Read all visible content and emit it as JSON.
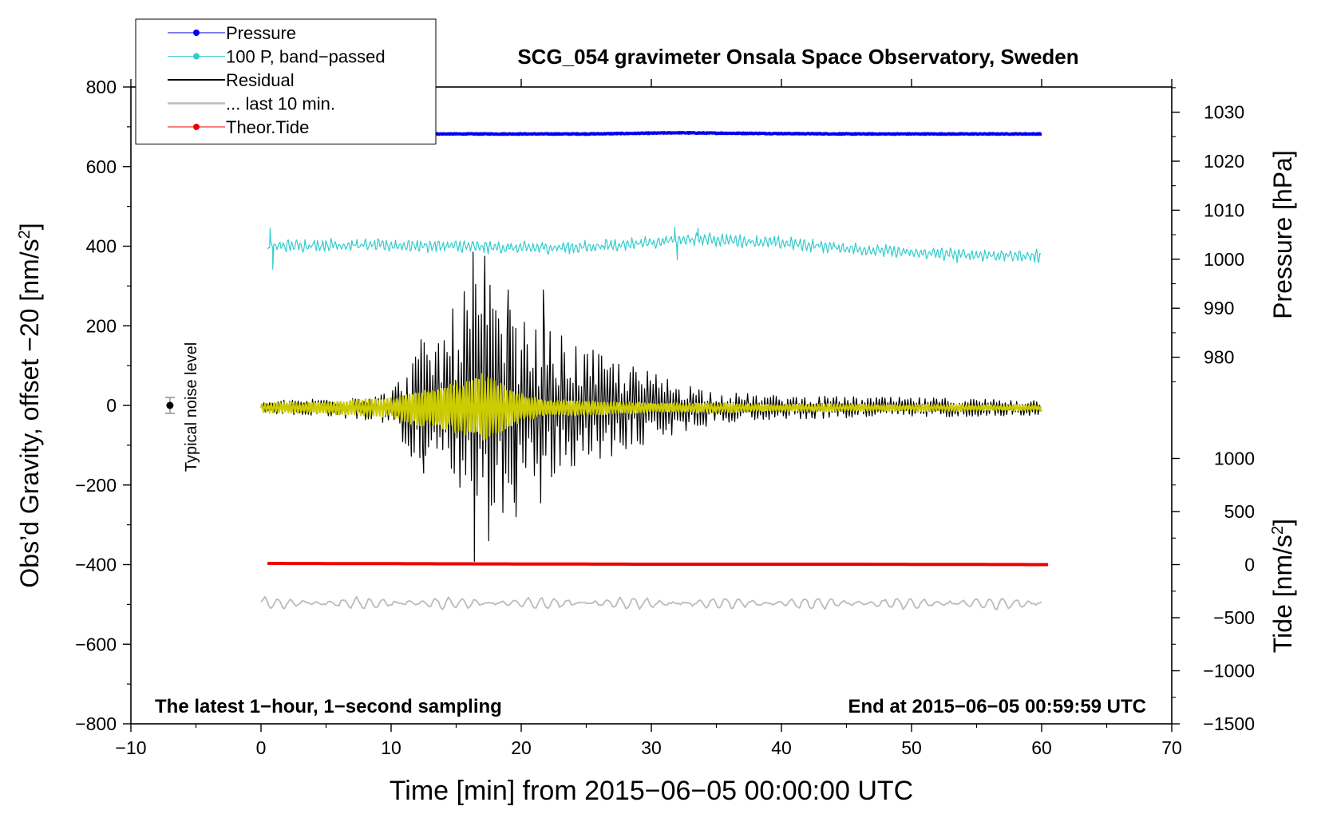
{
  "chart_data": {
    "type": "line",
    "title": "SCG_054 gravimeter Onsala Space Observatory, Sweden",
    "xlabel": "Time [min] from 2015−06−05 00:00:00 UTC",
    "ylabel": "Obs’d Gravity, offset −20 [nm/s²]",
    "ylabel_parts": {
      "main": "Obs’d Gravity, offset −20 [nm/s",
      "sup": "2",
      "end": "]"
    },
    "xlim": [
      -10,
      70
    ],
    "ylim": [
      -800,
      800
    ],
    "x_ticks": [
      -10,
      0,
      10,
      20,
      30,
      40,
      50,
      60,
      70
    ],
    "x_tick_labels": [
      "−10",
      "0",
      "10",
      "20",
      "30",
      "40",
      "50",
      "60",
      "70"
    ],
    "y_ticks": [
      -800,
      -600,
      -400,
      -200,
      0,
      200,
      400,
      600,
      800
    ],
    "y_tick_labels": [
      "−800",
      "−600",
      "−400",
      "−200",
      "0",
      "200",
      "400",
      "600",
      "800"
    ],
    "right_axis_pressure": {
      "label": "Pressure [hPa]",
      "ticks": [
        980,
        990,
        1000,
        1010,
        1020,
        1030
      ],
      "tick_labels": [
        "980",
        "990",
        "1000",
        "1010",
        "1020",
        "1030"
      ],
      "mapping": {
        "value_a": 1000,
        "gravity_a": 367.3,
        "value_b": 1030,
        "gravity_b": 736.7
      }
    },
    "right_axis_tide": {
      "label_parts": {
        "main": "Tide [nm/s",
        "sup": "2",
        "end": "]"
      },
      "ticks": [
        -1500,
        -1000,
        -500,
        0,
        500,
        1000
      ],
      "tick_labels": [
        "−1500",
        "−1000",
        "−500",
        "0",
        "500",
        "1000"
      ],
      "mapping": {
        "value_a": 0,
        "gravity_a": -400,
        "value_b": 1000,
        "gravity_b": -133.3
      }
    },
    "legend": {
      "position": "top-left",
      "entries": [
        {
          "label": "Pressure",
          "color": "#0000ee",
          "marker": true
        },
        {
          "label": "100 P, band−passed",
          "color": "#33cccc",
          "marker": true
        },
        {
          "label": "Residual",
          "color": "#000000",
          "marker": false
        },
        {
          "label": "... last 10 min.",
          "color": "#bbbbbb",
          "marker": false
        },
        {
          "label": "Theor.Tide",
          "color": "#ee0000",
          "marker": true
        }
      ]
    },
    "annotations": {
      "bottom_left": "The latest 1−hour, 1−second sampling",
      "bottom_right": "End at 2015−06−05 00:59:59 UTC",
      "noise_label": "Typical noise level",
      "noise_marker": {
        "x": -7,
        "y": 0,
        "err": 20
      }
    },
    "series": [
      {
        "name": "Pressure",
        "color": "#0000ee",
        "x": [
          0,
          5,
          10,
          15,
          20,
          25,
          30,
          32,
          35,
          40,
          45,
          50,
          55,
          60
        ],
        "y": [
          683,
          682,
          682,
          682,
          682,
          682,
          684,
          685,
          684,
          683,
          682,
          682,
          682,
          682
        ]
      },
      {
        "name": "100 P, band-passed",
        "color": "#33cccc",
        "baseline": {
          "x": [
            0.5,
            5,
            10,
            15,
            20,
            25,
            30,
            34,
            40,
            45,
            50,
            55,
            60
          ],
          "y": [
            400,
            403,
            402,
            400,
            395,
            398,
            410,
            418,
            408,
            395,
            383,
            378,
            375
          ]
        },
        "amplitude": 10,
        "spikes": [
          {
            "x": 0.7,
            "y": 445
          },
          {
            "x": 0.9,
            "y": 342
          },
          {
            "x": 31.8,
            "y": 448
          },
          {
            "x": 32.0,
            "y": 365
          },
          {
            "x": 33.6,
            "y": 445
          },
          {
            "x": 53.5,
            "y": 358
          }
        ]
      },
      {
        "name": "Residual",
        "color": "#000000",
        "envelope": {
          "x": [
            0,
            5,
            10,
            12,
            14,
            16,
            17,
            18,
            20,
            22,
            25,
            30,
            35,
            40,
            50,
            60
          ],
          "y": [
            15,
            25,
            40,
            150,
            200,
            330,
            320,
            300,
            220,
            200,
            150,
            90,
            40,
            30,
            25,
            20
          ]
        },
        "extremes": [
          {
            "x": 12.3,
            "y": 165
          },
          {
            "x": 12.5,
            "y": -170
          },
          {
            "x": 16.3,
            "y": 385
          },
          {
            "x": 16.4,
            "y": -392
          },
          {
            "x": 17.2,
            "y": 375
          },
          {
            "x": 17.5,
            "y": -340
          },
          {
            "x": 19.0,
            "y": 290
          },
          {
            "x": 19.6,
            "y": -280
          },
          {
            "x": 21.7,
            "y": 290
          },
          {
            "x": 21.5,
            "y": -245
          }
        ]
      },
      {
        "name": "Residual (yellow filtered)",
        "color": "#cccc00",
        "envelope": {
          "x": [
            0,
            5,
            10,
            12,
            15,
            17,
            18,
            20,
            22,
            25,
            30,
            40,
            60
          ],
          "y": [
            12,
            18,
            25,
            55,
            70,
            85,
            75,
            40,
            25,
            18,
            15,
            10,
            8
          ]
        }
      },
      {
        "name": "... last 10 min.",
        "color": "#bbbbbb",
        "center": -497,
        "amplitude": 14
      },
      {
        "name": "Theor.Tide",
        "color": "#ee0000",
        "x": [
          0.5,
          15,
          30,
          45,
          60.5
        ],
        "y": [
          -397,
          -398,
          -399,
          -399,
          -400
        ]
      }
    ]
  }
}
